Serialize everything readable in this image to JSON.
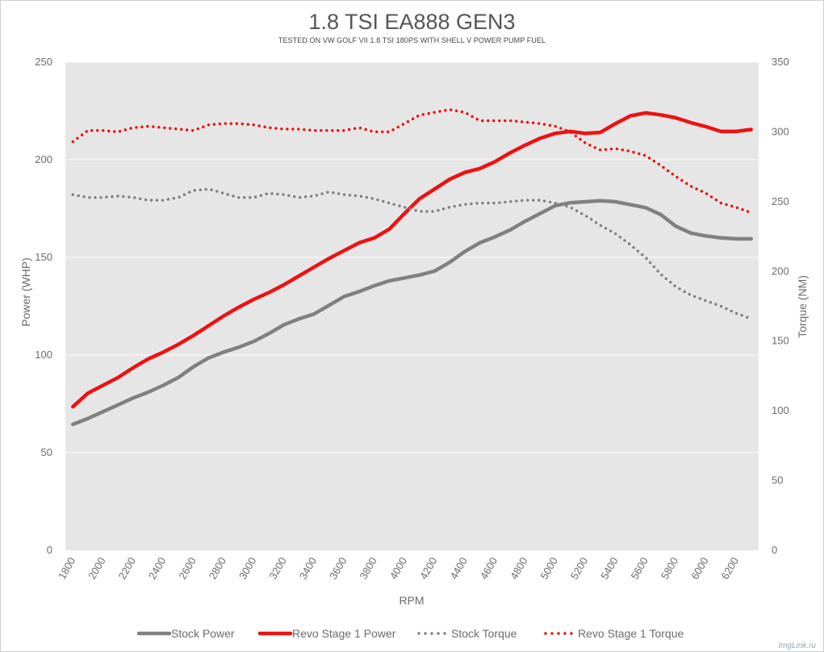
{
  "chart_data": {
    "type": "line",
    "title": "1.8 TSI EA888 GEN3",
    "subtitle": "TESTED ON VW GOLF VII 1.8 TSI 180PS WITH SHELL V POWER PUMP FUEL",
    "xlabel": "RPM",
    "ylabel": "Power (WHP)",
    "y2label": "Torque (NM)",
    "xlim": [
      1750,
      6350
    ],
    "ylim": [
      0,
      250
    ],
    "y2lim": [
      0,
      350
    ],
    "xticks": [
      1800,
      2000,
      2200,
      2400,
      2600,
      2800,
      3000,
      3200,
      3400,
      3600,
      3800,
      4000,
      4200,
      4400,
      4600,
      4800,
      5000,
      5200,
      5400,
      5600,
      5800,
      6000,
      6200
    ],
    "yticks": [
      0,
      50,
      100,
      150,
      200,
      250
    ],
    "y2ticks": [
      0,
      50,
      100,
      150,
      200,
      250,
      300,
      350
    ],
    "x": [
      1800,
      1900,
      2000,
      2100,
      2200,
      2300,
      2400,
      2500,
      2600,
      2700,
      2800,
      2900,
      3000,
      3100,
      3200,
      3300,
      3400,
      3500,
      3600,
      3700,
      3800,
      3900,
      4000,
      4100,
      4200,
      4300,
      4400,
      4500,
      4600,
      4700,
      4800,
      4900,
      5000,
      5100,
      5200,
      5300,
      5400,
      5500,
      5600,
      5700,
      5800,
      5900,
      6000,
      6100,
      6200,
      6300
    ],
    "series": [
      {
        "name": "Stock Power",
        "axis": "left",
        "style": "solid",
        "color": "#808080",
        "values": [
          64.5,
          67.5,
          71,
          74.5,
          78,
          81,
          84.5,
          88.5,
          94,
          98.5,
          101.5,
          104,
          107,
          111,
          115.5,
          118.5,
          121,
          125.5,
          130,
          132.5,
          135.5,
          138,
          139.5,
          141,
          143,
          147.5,
          153,
          157.5,
          160.5,
          164,
          168.5,
          172.5,
          176.5,
          178,
          178.5,
          179,
          178.5,
          177,
          175.5,
          172,
          166,
          162.5,
          161,
          160,
          159.5,
          159.5
        ]
      },
      {
        "name": "Revo Stage 1 Power",
        "axis": "left",
        "style": "solid",
        "color": "#ee1111",
        "values": [
          73.5,
          80.5,
          84.5,
          88.5,
          93.5,
          98,
          101.5,
          105.5,
          110,
          115,
          120,
          124.5,
          128.5,
          132,
          136,
          140.5,
          145,
          149.5,
          153.5,
          157.5,
          160,
          164.5,
          172.5,
          180,
          185,
          190,
          193.5,
          195.5,
          199,
          203.5,
          207.5,
          211,
          213.5,
          214.5,
          213.5,
          214,
          218.5,
          222.5,
          224,
          223,
          221.5,
          219,
          217,
          214.5,
          214.5,
          215.5
        ]
      },
      {
        "name": "Stock Torque",
        "axis": "right",
        "style": "dotted",
        "color": "#808080",
        "values": [
          255,
          253,
          253,
          254,
          253,
          251,
          251,
          253,
          258,
          259,
          256,
          253,
          253,
          256,
          255,
          253,
          254,
          257,
          255,
          254,
          252,
          249,
          246,
          243,
          243,
          246,
          248,
          249,
          249,
          250,
          251,
          251,
          249,
          246,
          240,
          233,
          227,
          219,
          210,
          198,
          189,
          183,
          179,
          175,
          170,
          166
        ]
      },
      {
        "name": "Revo Stage 1 Torque",
        "axis": "right",
        "style": "dotted",
        "color": "#ee1111",
        "values": [
          293,
          301,
          301,
          300,
          303,
          304,
          303,
          302,
          301,
          305,
          306,
          306,
          305,
          303,
          302,
          302,
          301,
          301,
          301,
          303,
          300,
          300,
          306,
          312,
          314,
          316,
          314,
          308,
          308,
          308,
          307,
          306,
          304,
          300,
          292,
          287,
          288,
          286,
          283,
          276,
          268,
          261,
          256,
          249,
          246,
          242
        ]
      }
    ],
    "legend": "bottom",
    "grid": true
  },
  "watermark": "ImgLink.ru"
}
